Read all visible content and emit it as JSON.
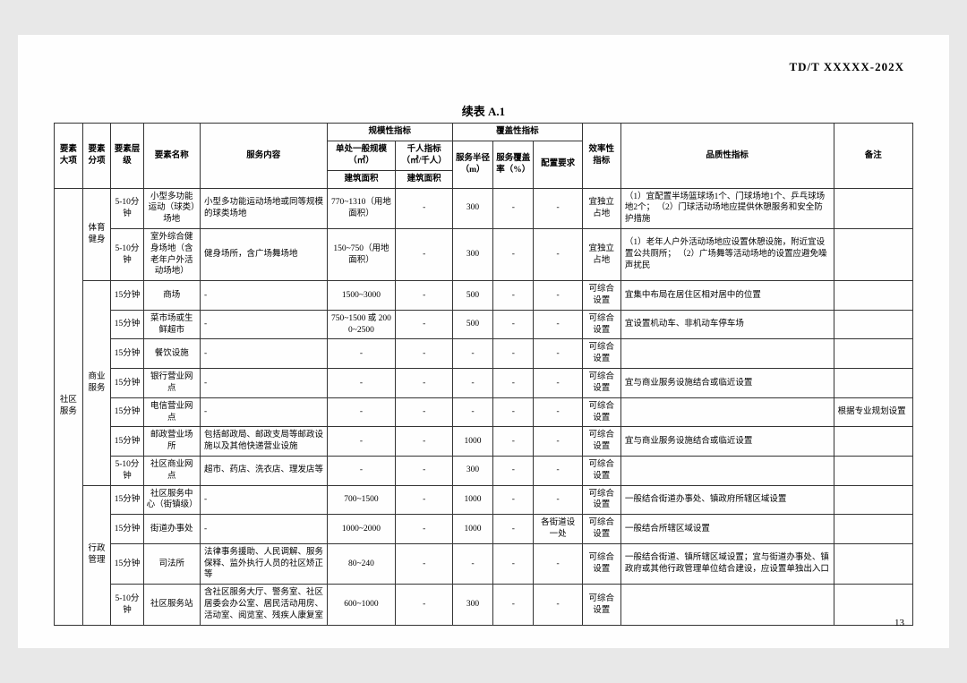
{
  "doc_id": "TD/T  XXXXX-202X",
  "title": "续表 A.1",
  "page_num": "13",
  "hdr": {
    "c1": "要素大项",
    "c2": "要素分项",
    "c3": "要素层级",
    "c4": "要素名称",
    "c5": "服务内容",
    "scale": "规模性指标",
    "cover": "覆盖性指标",
    "c6a": "单处一般规模（㎡）",
    "c6b": "建筑面积",
    "c7a": "千人指标（㎡/千人）",
    "c7b": "建筑面积",
    "c8": "服务半径（m）",
    "c9": "服务覆盖率（%）",
    "c10": "配置要求",
    "c11": "效率性指标",
    "c12": "品质性指标",
    "c13": "备注"
  },
  "cat_major": "社区服务",
  "sub": {
    "ty": "体育健身",
    "sy": "商业服务",
    "xz": "行政管理"
  },
  "rows": [
    {
      "lv": "5-10分钟",
      "name": "小型多功能运动（球类）场地",
      "svc": "小型多功能运动场地或同等规模的球类场地",
      "scale": "770~1310（用地面积）",
      "k": "-",
      "r": "300",
      "cov": "-",
      "cfg": "-",
      "eff": "宜独立占地",
      "q": "（1）宜配置半场篮球场1个、门球场地1个、乒乓球场地2个；\n（2）门球活动场地应提供休憩服务和安全防护措施",
      "note": ""
    },
    {
      "lv": "5-10分钟",
      "name": "室外综合健身场地（含老年户外活动场地）",
      "svc": "健身场所，含广场舞场地",
      "scale": "150~750（用地面积）",
      "k": "-",
      "r": "300",
      "cov": "-",
      "cfg": "-",
      "eff": "宜独立占地",
      "q": "（1）老年人户外活动场地应设置休憩设施，附近宜设置公共厕所；\n（2）广场舞等活动场地的设置应避免噪声扰民",
      "note": ""
    },
    {
      "lv": "15分钟",
      "name": "商场",
      "svc": "-",
      "scale": "1500~3000",
      "k": "-",
      "r": "500",
      "cov": "-",
      "cfg": "-",
      "eff": "可综合设置",
      "q": "宜集中布局在居住区相对居中的位置",
      "note": ""
    },
    {
      "lv": "15分钟",
      "name": "菜市场或生鲜超市",
      "svc": "-",
      "scale": "750~1500 或 2000~2500",
      "k": "-",
      "r": "500",
      "cov": "-",
      "cfg": "-",
      "eff": "可综合设置",
      "q": "宜设置机动车、非机动车停车场",
      "note": ""
    },
    {
      "lv": "15分钟",
      "name": "餐饮设施",
      "svc": "-",
      "scale": "-",
      "k": "-",
      "r": "-",
      "cov": "-",
      "cfg": "-",
      "eff": "可综合设置",
      "q": "",
      "note": ""
    },
    {
      "lv": "15分钟",
      "name": "银行营业网点",
      "svc": "-",
      "scale": "-",
      "k": "-",
      "r": "-",
      "cov": "-",
      "cfg": "-",
      "eff": "可综合设置",
      "q": "宜与商业服务设施结合或临近设置",
      "note": ""
    },
    {
      "lv": "15分钟",
      "name": "电信营业网点",
      "svc": "-",
      "scale": "-",
      "k": "-",
      "r": "-",
      "cov": "-",
      "cfg": "-",
      "eff": "可综合设置",
      "q": "",
      "note": "根据专业规划设置"
    },
    {
      "lv": "15分钟",
      "name": "邮政营业场所",
      "svc": "包括邮政局、邮政支局等邮政设施以及其他快递营业设施",
      "scale": "-",
      "k": "-",
      "r": "1000",
      "cov": "-",
      "cfg": "-",
      "eff": "可综合设置",
      "q": "宜与商业服务设施结合或临近设置",
      "note": ""
    },
    {
      "lv": "5-10分钟",
      "name": "社区商业网点",
      "svc": "超市、药店、洗衣店、理发店等",
      "scale": "-",
      "k": "-",
      "r": "300",
      "cov": "-",
      "cfg": "-",
      "eff": "可综合设置",
      "q": "",
      "note": ""
    },
    {
      "lv": "15分钟",
      "name": "社区服务中心（街镇级）",
      "svc": "-",
      "scale": "700~1500",
      "k": "-",
      "r": "1000",
      "cov": "-",
      "cfg": "-",
      "eff": "可综合设置",
      "q": "一般结合街道办事处、镇政府所辖区域设置",
      "note": ""
    },
    {
      "lv": "15分钟",
      "name": "街道办事处",
      "svc": "-",
      "scale": "1000~2000",
      "k": "-",
      "r": "1000",
      "cov": "-",
      "cfg": "各街道设一处",
      "eff": "可综合设置",
      "q": "一般结合所辖区域设置",
      "note": ""
    },
    {
      "lv": "15分钟",
      "name": "司法所",
      "svc": "法律事务援助、人民调解、服务保释、监外执行人员的社区矫正等",
      "scale": "80~240",
      "k": "-",
      "r": "-",
      "cov": "-",
      "cfg": "-",
      "eff": "可综合设置",
      "q": "一般结合街道、镇所辖区域设置；宜与街道办事处、镇政府或其他行政管理单位结合建设，应设置单独出入口",
      "note": ""
    },
    {
      "lv": "5-10分钟",
      "name": "社区服务站",
      "svc": "含社区服务大厅、警务室、社区居委会办公室、居民活动用房、活动室、阅览室、残疾人康复室",
      "scale": "600~1000",
      "k": "-",
      "r": "300",
      "cov": "-",
      "cfg": "-",
      "eff": "可综合设置",
      "q": "",
      "note": ""
    }
  ]
}
